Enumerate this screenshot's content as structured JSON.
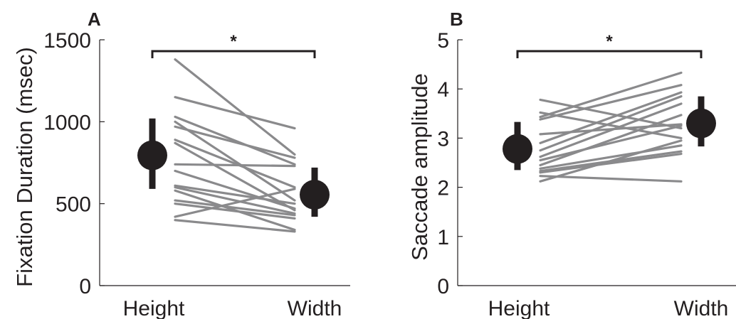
{
  "chart_data": [
    {
      "panel": "A",
      "type": "line",
      "ylabel": "Fixation Duration (msec)",
      "categories": [
        "Height",
        "Width"
      ],
      "ylim": [
        0,
        1500
      ],
      "yticks": [
        0,
        500,
        1000,
        1500
      ],
      "significance": "*",
      "subjects": [
        [
          1380,
          800
        ],
        [
          1150,
          960
        ],
        [
          1030,
          740
        ],
        [
          1000,
          520
        ],
        [
          970,
          780
        ],
        [
          890,
          600
        ],
        [
          870,
          460
        ],
        [
          740,
          730
        ],
        [
          700,
          470
        ],
        [
          610,
          500
        ],
        [
          600,
          440
        ],
        [
          580,
          340
        ],
        [
          520,
          430
        ],
        [
          500,
          410
        ],
        [
          420,
          590
        ],
        [
          400,
          330
        ]
      ],
      "mean": {
        "values": [
          795,
          555
        ],
        "ci": [
          [
            590,
            1020
          ],
          [
            420,
            720
          ]
        ]
      }
    },
    {
      "panel": "B",
      "type": "line",
      "ylabel": "Saccade amplitude",
      "categories": [
        "Height",
        "Width"
      ],
      "ylim": [
        0,
        5
      ],
      "yticks": [
        0,
        1,
        2,
        3,
        4,
        5
      ],
      "significance": "*",
      "subjects": [
        [
          3.78,
          3.2
        ],
        [
          3.52,
          3.0
        ],
        [
          3.43,
          4.33
        ],
        [
          3.38,
          4.08
        ],
        [
          3.08,
          3.28
        ],
        [
          2.9,
          3.93
        ],
        [
          2.75,
          3.85
        ],
        [
          2.62,
          3.7
        ],
        [
          2.55,
          3.25
        ],
        [
          2.45,
          3.47
        ],
        [
          2.38,
          2.85
        ],
        [
          2.33,
          2.73
        ],
        [
          2.3,
          2.68
        ],
        [
          2.23,
          2.12
        ],
        [
          2.12,
          2.95
        ]
      ],
      "mean": {
        "values": [
          2.78,
          3.3
        ],
        "ci": [
          [
            2.35,
            3.33
          ],
          [
            2.83,
            3.85
          ]
        ]
      }
    }
  ]
}
